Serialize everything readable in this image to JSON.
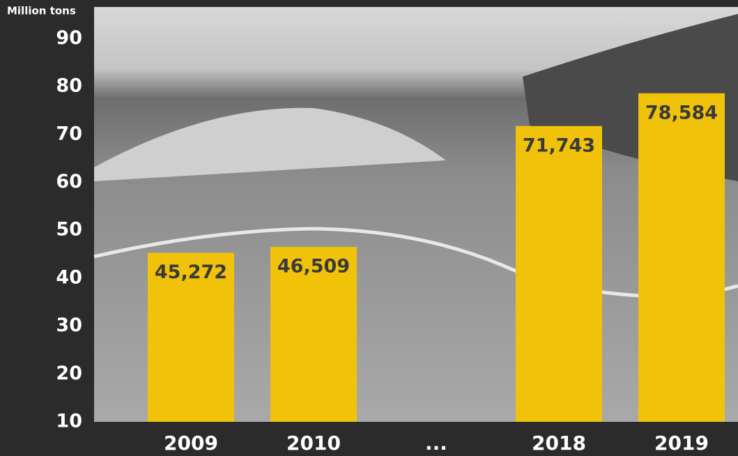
{
  "chart_data": {
    "type": "bar",
    "y_label": "Million tons",
    "categories": [
      "2009",
      "2010",
      "...",
      "2018",
      "2019"
    ],
    "values": [
      45.272,
      46.509,
      null,
      71.743,
      78.584
    ],
    "value_labels": [
      "45,272",
      "46,509",
      null,
      "71,743",
      "78,584"
    ],
    "color": "#f0c20a",
    "ylim": [
      10,
      96.6
    ],
    "yticks": [
      10,
      20,
      30,
      40,
      50,
      60,
      70,
      80,
      90
    ],
    "grid": false
  }
}
